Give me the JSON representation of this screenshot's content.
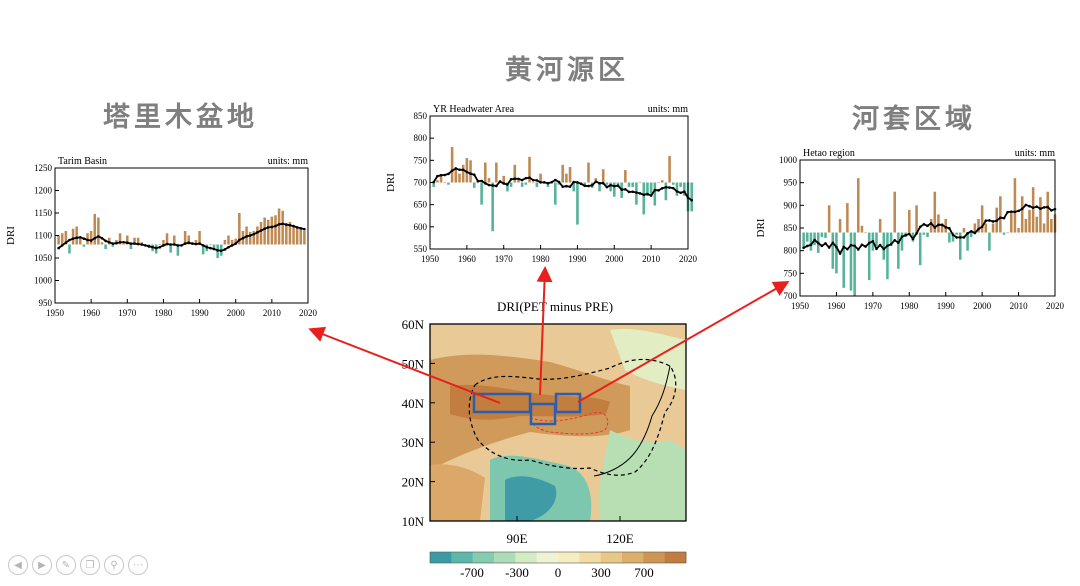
{
  "headings": {
    "tarim": "塔里木盆地",
    "yr": "黄河源区",
    "hetao": "河套区域"
  },
  "map": {
    "title": "DRI(PET minus PRE)",
    "lat_labels": [
      "60N",
      "50N",
      "40N",
      "30N",
      "20N",
      "10N"
    ],
    "lon_labels": [
      "90E",
      "120E"
    ],
    "colorbar_labels": [
      "-700",
      "-300",
      "0",
      "300",
      "700"
    ],
    "colorbar_colors": [
      "#3a9aa6",
      "#5cb7a8",
      "#84cbb0",
      "#aedcb8",
      "#d4ecc4",
      "#eef3d4",
      "#f7edc2",
      "#f0dca5",
      "#e8c887",
      "#dcb06b",
      "#cf9653",
      "#c07d3f"
    ]
  },
  "toolbar": {
    "icons": [
      "prev-icon",
      "next-icon",
      "pen-icon",
      "copy-icon",
      "zoom-icon",
      "more-icon"
    ]
  },
  "chart_data": [
    {
      "type": "bar",
      "title": "Tarim Basin",
      "units": "units: mm",
      "ylabel": "DRI",
      "xlim": [
        1950,
        2020
      ],
      "ylim": [
        950,
        1250
      ],
      "yticks": [
        950,
        1000,
        1050,
        1100,
        1150,
        1200,
        1250
      ],
      "xticks": [
        1950,
        1960,
        1970,
        1980,
        1990,
        2000,
        2010,
        2020
      ],
      "baseline": 1080,
      "years_start": 1951,
      "values": [
        1100,
        1105,
        1110,
        1060,
        1115,
        1120,
        1095,
        1075,
        1105,
        1110,
        1148,
        1140,
        1085,
        1070,
        1095,
        1075,
        1090,
        1105,
        1080,
        1100,
        1070,
        1095,
        1095,
        1085,
        1078,
        1072,
        1065,
        1060,
        1080,
        1090,
        1105,
        1062,
        1100,
        1055,
        1080,
        1110,
        1100,
        1085,
        1090,
        1110,
        1058,
        1065,
        1080,
        1072,
        1050,
        1055,
        1090,
        1100,
        1090,
        1093,
        1150,
        1110,
        1120,
        1108,
        1110,
        1120,
        1130,
        1140,
        1135,
        1142,
        1145,
        1160,
        1155,
        1128,
        1130,
        1120,
        1118,
        1115,
        1110
      ],
      "moving_avg": [
        1072,
        1078,
        1084,
        1090,
        1093,
        1095,
        1096,
        1093,
        1090,
        1089,
        1094,
        1098,
        1094,
        1088,
        1085,
        1082,
        1083,
        1085,
        1085,
        1084,
        1082,
        1082,
        1081,
        1080,
        1078,
        1076,
        1074,
        1072,
        1074,
        1078,
        1081,
        1080,
        1080,
        1078,
        1078,
        1082,
        1084,
        1082,
        1081,
        1082,
        1078,
        1074,
        1072,
        1070,
        1067,
        1066,
        1069,
        1074,
        1078,
        1082,
        1090,
        1094,
        1098,
        1100,
        1103,
        1107,
        1111,
        1115,
        1118,
        1119,
        1121,
        1125,
        1126,
        1124,
        1123,
        1121,
        1118,
        1116,
        1114
      ]
    },
    {
      "type": "bar",
      "title": "YR Headwater Area",
      "units": "units: mm",
      "ylabel": "DRI",
      "xlim": [
        1950,
        2020
      ],
      "ylim": [
        550,
        850
      ],
      "yticks": [
        550,
        600,
        650,
        700,
        750,
        800,
        850
      ],
      "xticks": [
        1950,
        1960,
        1970,
        1980,
        1990,
        2000,
        2010,
        2020
      ],
      "baseline": 700,
      "years_start": 1951,
      "values": [
        690,
        705,
        715,
        700,
        695,
        780,
        730,
        720,
        740,
        755,
        750,
        688,
        700,
        650,
        745,
        710,
        590,
        745,
        705,
        715,
        680,
        690,
        740,
        705,
        690,
        695,
        758,
        700,
        690,
        720,
        700,
        690,
        700,
        650,
        695,
        740,
        720,
        735,
        680,
        605,
        700,
        690,
        745,
        688,
        710,
        680,
        730,
        695,
        680,
        668,
        690,
        665,
        728,
        690,
        690,
        650,
        700,
        628,
        670,
        675,
        648,
        700,
        705,
        660,
        760,
        695,
        670,
        690,
        670,
        635,
        635
      ]
    },
    {
      "type": "bar",
      "title": "Hetao region",
      "units": "units: mm",
      "ylabel": "DRI",
      "xlim": [
        1950,
        2020
      ],
      "ylim": [
        700,
        1000
      ],
      "yticks": [
        700,
        750,
        800,
        850,
        900,
        950,
        1000
      ],
      "xticks": [
        1950,
        1960,
        1970,
        1980,
        1990,
        2000,
        2010,
        2020
      ],
      "baseline": 840,
      "years_start": 1951,
      "values": [
        805,
        820,
        800,
        812,
        795,
        830,
        828,
        900,
        760,
        750,
        870,
        718,
        905,
        712,
        700,
        960,
        855,
        840,
        735,
        800,
        810,
        870,
        780,
        737,
        810,
        930,
        760,
        800,
        830,
        890,
        820,
        900,
        768,
        835,
        830,
        870,
        930,
        880,
        860,
        870,
        818,
        820,
        835,
        780,
        850,
        800,
        830,
        860,
        870,
        900,
        860,
        800,
        860,
        895,
        920,
        835,
        840,
        885,
        960,
        850,
        920,
        870,
        890,
        940,
        875,
        918,
        860,
        930,
        870,
        880
      ]
    }
  ]
}
